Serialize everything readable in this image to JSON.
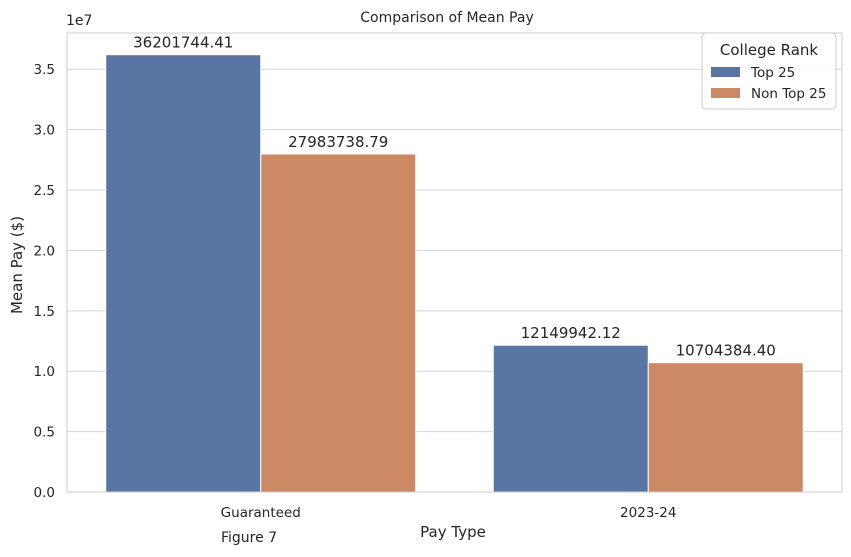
{
  "chart_data": {
    "type": "bar",
    "title": "Comparison of Mean Pay",
    "xlabel": "Pay Type",
    "ylabel": "Mean Pay ($)",
    "offset_label": "1e7",
    "categories": [
      "Guaranteed",
      "2023-24"
    ],
    "series": [
      {
        "name": "Top 25",
        "color": "#5875a4",
        "values": [
          36201744.41,
          12149942.12
        ],
        "labels": [
          "36201744.41",
          "12149942.12"
        ]
      },
      {
        "name": "Non Top 25",
        "color": "#cc8963",
        "values": [
          27983738.79,
          10704384.4
        ],
        "labels": [
          "27983738.79",
          "10704384.40"
        ]
      }
    ],
    "ylim": [
      0,
      38000000
    ],
    "yticks": [
      0,
      5000000,
      10000000,
      15000000,
      20000000,
      25000000,
      30000000,
      35000000
    ],
    "ytick_labels": [
      "0.0",
      "0.5",
      "1.0",
      "1.5",
      "2.0",
      "2.5",
      "3.0",
      "3.5"
    ],
    "legend": {
      "title": "College Rank",
      "position": "top-right"
    },
    "grid": true
  },
  "caption": "Figure 7"
}
